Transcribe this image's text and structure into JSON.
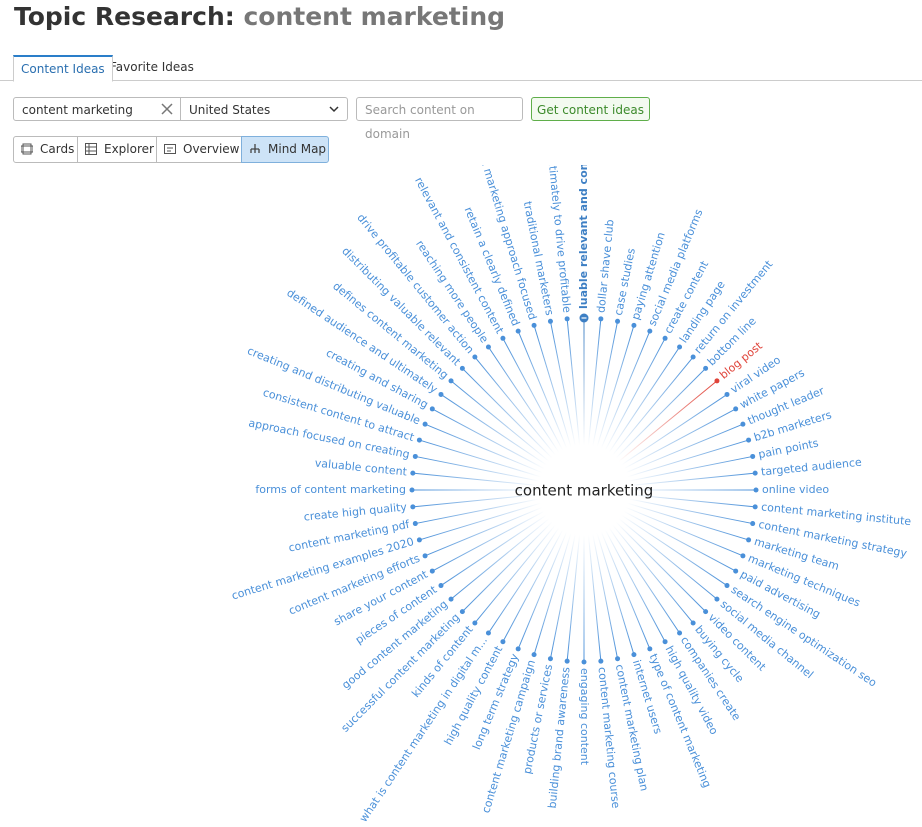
{
  "header": {
    "title": "Topic Research:",
    "query": "content marketing"
  },
  "tabs": [
    "Content Ideas",
    "Favorite Ideas"
  ],
  "search": {
    "query": "content marketing",
    "country": "United States",
    "domain_placeholder": "Search content on domain",
    "button": "Get content ideas"
  },
  "views": [
    "Cards",
    "Explorer",
    "Overview",
    "Mind Map"
  ],
  "mindmap": {
    "center": "content marketing",
    "nodes": [
      {
        "label": "luable relevant and consistent",
        "color": "#3d7fc4",
        "weight": "bold"
      },
      {
        "label": "dollar shave club",
        "color": "#4a90d9"
      },
      {
        "label": "case studies",
        "color": "#4a90d9"
      },
      {
        "label": "paying attention",
        "color": "#4a90d9"
      },
      {
        "label": "social media platforms",
        "color": "#4a90d9"
      },
      {
        "label": "create content",
        "color": "#4a90d9"
      },
      {
        "label": "landing page",
        "color": "#4a90d9"
      },
      {
        "label": "return on investment",
        "color": "#4a90d9"
      },
      {
        "label": "bottom line",
        "color": "#4a90d9"
      },
      {
        "label": "blog post",
        "color": "#e0443a"
      },
      {
        "label": "viral video",
        "color": "#4a90d9"
      },
      {
        "label": "white papers",
        "color": "#4a90d9"
      },
      {
        "label": "thought leader",
        "color": "#4a90d9"
      },
      {
        "label": "b2b marketers",
        "color": "#4a90d9"
      },
      {
        "label": "pain points",
        "color": "#4a90d9"
      },
      {
        "label": "targeted audience",
        "color": "#4a90d9"
      },
      {
        "label": "online video",
        "color": "#4a90d9"
      },
      {
        "label": "content marketing institute",
        "color": "#4a90d9"
      },
      {
        "label": "content marketing strategy",
        "color": "#4a90d9"
      },
      {
        "label": "marketing team",
        "color": "#4a90d9"
      },
      {
        "label": "marketing techniques",
        "color": "#4a90d9"
      },
      {
        "label": "paid advertising",
        "color": "#4a90d9"
      },
      {
        "label": "search engine optimization seo",
        "color": "#4a90d9"
      },
      {
        "label": "social media channel",
        "color": "#4a90d9"
      },
      {
        "label": "video content",
        "color": "#4a90d9"
      },
      {
        "label": "buying cycle",
        "color": "#4a90d9"
      },
      {
        "label": "companies create",
        "color": "#4a90d9"
      },
      {
        "label": "high quality video",
        "color": "#4a90d9"
      },
      {
        "label": "type of content marketing",
        "color": "#4a90d9"
      },
      {
        "label": "internet users",
        "color": "#4a90d9"
      },
      {
        "label": "content marketing plan",
        "color": "#4a90d9"
      },
      {
        "label": "content marketing course",
        "color": "#4a90d9"
      },
      {
        "label": "engaging content",
        "color": "#4a90d9"
      },
      {
        "label": "building brand awareness",
        "color": "#4a90d9"
      },
      {
        "label": "products or services",
        "color": "#4a90d9"
      },
      {
        "label": "content marketing campaign",
        "color": "#4a90d9"
      },
      {
        "label": "long term strategy",
        "color": "#4a90d9"
      },
      {
        "label": "high quality content",
        "color": "#4a90d9"
      },
      {
        "label": "what is content marketing in digital m...",
        "color": "#4a90d9"
      },
      {
        "label": "kinds of content",
        "color": "#4a90d9"
      },
      {
        "label": "successful content marketing",
        "color": "#4a90d9"
      },
      {
        "label": "good content marketing",
        "color": "#4a90d9"
      },
      {
        "label": "pieces of content",
        "color": "#4a90d9"
      },
      {
        "label": "share your content",
        "color": "#4a90d9"
      },
      {
        "label": "content marketing efforts",
        "color": "#4a90d9"
      },
      {
        "label": "content marketing examples 2020",
        "color": "#4a90d9"
      },
      {
        "label": "content marketing pdf",
        "color": "#4a90d9"
      },
      {
        "label": "create high quality",
        "color": "#4a90d9"
      },
      {
        "label": "forms of content marketing",
        "color": "#4a90d9"
      },
      {
        "label": "valuable content",
        "color": "#4a90d9"
      },
      {
        "label": "approach focused on creating",
        "color": "#4a90d9"
      },
      {
        "label": "consistent content to attract",
        "color": "#4a90d9"
      },
      {
        "label": "creating and distributing valuable",
        "color": "#4a90d9"
      },
      {
        "label": "creating and sharing",
        "color": "#4a90d9"
      },
      {
        "label": "defined audience and ultimately",
        "color": "#4a90d9"
      },
      {
        "label": "defines content marketing",
        "color": "#4a90d9"
      },
      {
        "label": "distributing valuable relevant",
        "color": "#4a90d9"
      },
      {
        "label": "drive profitable customer action",
        "color": "#4a90d9"
      },
      {
        "label": "reaching more people",
        "color": "#4a90d9"
      },
      {
        "label": "relevant and consistent content",
        "color": "#4a90d9"
      },
      {
        "label": "retain a clearly defined",
        "color": "#4a90d9"
      },
      {
        "label": "strategic marketing approach focused",
        "color": "#4a90d9"
      },
      {
        "label": "traditional marketers",
        "color": "#4a90d9"
      },
      {
        "label": "ultimately to drive profitable",
        "color": "#4a90d9"
      }
    ]
  }
}
